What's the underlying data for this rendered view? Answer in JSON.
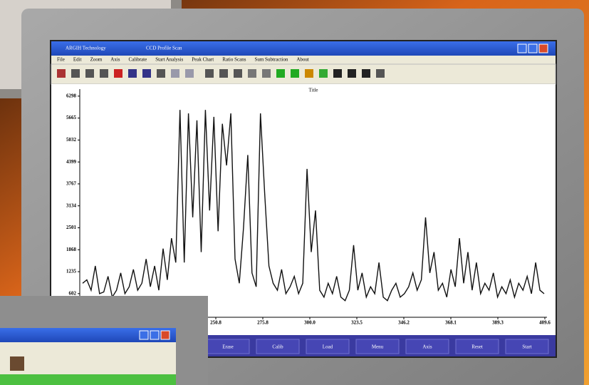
{
  "screen": {
    "window": {
      "app": "ARGIH Technology",
      "title": "CCD Profile Scan"
    },
    "menu": [
      "File",
      "Edit",
      "Zoom",
      "Axis",
      "Calibrate",
      "Start Analysis",
      "Peak Chart",
      "Ratio Scans",
      "Sum Subtraction",
      "About"
    ],
    "plot": {
      "title": "Title",
      "ylim": [
        -80,
        6500
      ],
      "yticks": [
        6298,
        5665,
        5032,
        4399,
        3767,
        3134,
        2501,
        1868,
        1235,
        602
      ],
      "xtick_labels": [
        "250.8",
        "275.8",
        "300.0",
        "323.5",
        "346.2",
        "368.1",
        "389.3",
        "409.6"
      ],
      "values": [
        900,
        1000,
        700,
        1400,
        600,
        650,
        1100,
        500,
        700,
        1200,
        600,
        800,
        1300,
        700,
        900,
        1600,
        800,
        1400,
        700,
        1900,
        1000,
        2200,
        1500,
        5900,
        1500,
        5800,
        2800,
        5600,
        1800,
        5900,
        3000,
        5700,
        2400,
        5500,
        4300,
        5800,
        1600,
        900,
        2500,
        4600,
        1200,
        800,
        5800,
        3500,
        1400,
        900,
        700,
        1300,
        600,
        800,
        1100,
        600,
        900,
        4200,
        1800,
        3000,
        700,
        500,
        900,
        600,
        1100,
        500,
        400,
        700,
        2000,
        700,
        1200,
        500,
        800,
        600,
        1500,
        500,
        400,
        700,
        900,
        500,
        600,
        800,
        1200,
        700,
        1000,
        2800,
        1200,
        1800,
        700,
        900,
        500,
        1300,
        800,
        2200,
        900,
        1800,
        700,
        1500,
        600,
        900,
        700,
        1200,
        500,
        800,
        600,
        1000,
        500,
        900,
        700,
        1100,
        600,
        1500,
        700,
        600
      ]
    },
    "buttons": [
      "Erase",
      "Calib",
      "Load",
      "Menu",
      "Axis",
      "Reset",
      "Start"
    ]
  }
}
